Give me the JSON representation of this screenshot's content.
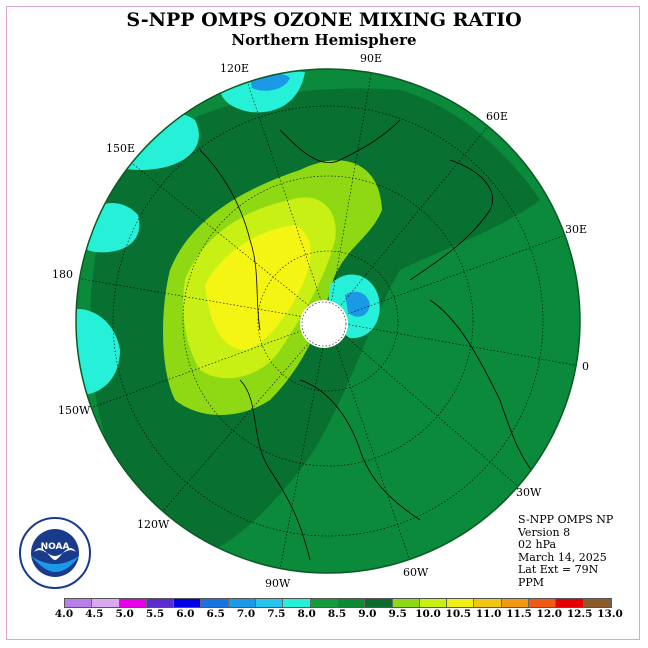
{
  "title": "S-NPP OMPS OZONE MIXING RATIO",
  "subtitle": "Northern Hemisphere",
  "meridian_labels": {
    "e120": "120E",
    "e90": "90E",
    "e60": "60E",
    "e150": "150E",
    "e30": "30E",
    "d180": "180",
    "d0": "0",
    "w150": "150W",
    "w30": "30W",
    "w120": "120W",
    "w60": "60W",
    "w90": "90W"
  },
  "info": {
    "product": "S-NPP OMPS NP",
    "version": "Version 8",
    "level": "02 hPa",
    "date": "March 14, 2025",
    "lat_ext": "Lat Ext = 79N",
    "units": "PPM"
  },
  "logo_text": "NOAA",
  "colorbar": {
    "labels": [
      "4.0",
      "4.5",
      "5.0",
      "5.5",
      "6.0",
      "6.5",
      "7.0",
      "7.5",
      "8.0",
      "8.5",
      "9.0",
      "9.5",
      "10.0",
      "10.5",
      "11.0",
      "11.5",
      "12.0",
      "12.5",
      "13.0"
    ],
    "colors": [
      "#b77fe8",
      "#d8a8f0",
      "#e600e6",
      "#5a2bd1",
      "#0000e6",
      "#1673e6",
      "#1a9ae6",
      "#27c4f0",
      "#27f0d8",
      "#169c3a",
      "#0d8a34",
      "#0a6b2a",
      "#8fd914",
      "#c8f014",
      "#f0f014",
      "#f0c814",
      "#f09a14",
      "#f05a14",
      "#e60000",
      "#8c5a2b"
    ]
  },
  "map_fills": {
    "ocean_base": "#0a8a3a",
    "dark_band": "#087030",
    "light_green": "#8fd914",
    "yellow_green": "#c8f014",
    "yellow": "#f5f514",
    "cyan": "#27f0d8",
    "blue": "#1a9ae6",
    "polar_gap": "#ffffff"
  }
}
